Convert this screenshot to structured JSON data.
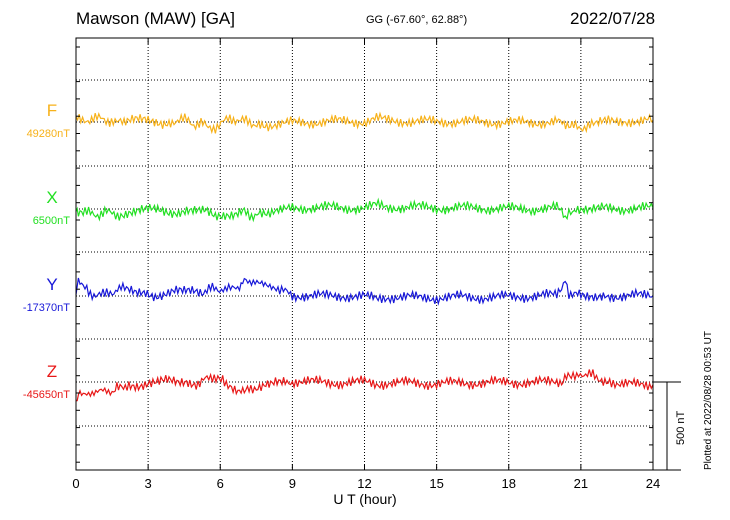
{
  "header": {
    "station": "Mawson (MAW)  [GA]",
    "coords": "GG (-67.60°,  62.88°)",
    "date": "2022/07/28"
  },
  "footer": {
    "plotted": "Plotted at 2022/08/28 00:53 UT"
  },
  "chart_data": {
    "type": "line",
    "title": "Mawson (MAW)  [GA]",
    "xlabel": "U T (hour)",
    "xlim": [
      0,
      24
    ],
    "xticks": [
      0,
      3,
      6,
      9,
      12,
      15,
      18,
      21,
      24
    ],
    "grid": true,
    "scale_bar": {
      "label": "500 nT",
      "value": 500,
      "unit": "nT"
    },
    "colors": {
      "F": "#f7b21b",
      "X": "#22e022",
      "Y": "#1818d8",
      "Z": "#e81818"
    },
    "series": [
      {
        "name": "F",
        "baseline": "49280nT",
        "x": [
          0,
          0.2,
          0.5,
          0.8,
          1.1,
          1.4,
          1.7,
          2.0,
          2.4,
          2.8,
          3.2,
          3.6,
          4.0,
          4.3,
          4.6,
          4.9,
          5.2,
          5.5,
          5.8,
          6.1,
          6.4,
          6.7,
          7.0,
          7.3,
          7.6,
          8.0,
          8.5,
          9.0,
          10.0,
          11.0,
          12.0,
          12.5,
          13.0,
          14.0,
          15.0,
          16.0,
          17.0,
          18.0,
          19.0,
          20.0,
          20.3,
          20.5,
          20.7,
          21.0,
          21.3,
          21.6,
          22.0,
          22.5,
          23.0,
          24.0
        ],
        "values": [
          30,
          10,
          15,
          18,
          20,
          8,
          -8,
          5,
          10,
          6,
          2,
          -2,
          5,
          15,
          10,
          -12,
          -5,
          -35,
          -28,
          -5,
          20,
          15,
          5,
          -10,
          -5,
          -15,
          -12,
          -5,
          0,
          5,
          2,
          18,
          8,
          4,
          2,
          3,
          0,
          -2,
          -3,
          2,
          -15,
          -35,
          -25,
          -30,
          -22,
          -18,
          0,
          -2,
          8,
          10
        ]
      },
      {
        "name": "X",
        "baseline": "6500nT",
        "x": [
          0,
          0.1,
          0.3,
          0.6,
          0.9,
          1.2,
          1.5,
          1.8,
          2.2,
          2.6,
          3.0,
          3.4,
          3.8,
          4.2,
          4.6,
          5.0,
          5.4,
          5.8,
          6.2,
          6.6,
          7.0,
          7.3,
          7.6,
          8.0,
          8.5,
          9.0,
          10.0,
          11.0,
          12.0,
          12.5,
          13.0,
          14.0,
          15.0,
          16.0,
          17.0,
          18.0,
          19.0,
          20.0,
          20.2,
          20.35,
          20.5,
          20.8,
          21.2,
          21.6,
          22.0,
          23.0,
          24.0
        ],
        "values": [
          -15,
          -30,
          -20,
          -25,
          -30,
          -20,
          -25,
          -30,
          -15,
          -12,
          -8,
          -5,
          -12,
          -15,
          -10,
          -20,
          -15,
          -35,
          -25,
          -28,
          -15,
          -35,
          -30,
          -20,
          -15,
          5,
          10,
          8,
          5,
          20,
          10,
          12,
          5,
          8,
          5,
          2,
          0,
          5,
          -25,
          -60,
          -15,
          5,
          10,
          8,
          5,
          2,
          5
        ]
      },
      {
        "name": "Y",
        "baseline": "-17370nT",
        "x": [
          0,
          0.1,
          0.3,
          0.6,
          0.9,
          1.2,
          1.5,
          1.8,
          2.1,
          2.5,
          2.9,
          3.3,
          3.7,
          4.1,
          4.5,
          4.9,
          5.3,
          5.6,
          5.9,
          6.2,
          6.5,
          6.8,
          7.0,
          7.3,
          7.6,
          8.0,
          8.4,
          9.0,
          10.0,
          11.0,
          12.0,
          12.5,
          13.0,
          14.0,
          15.0,
          16.0,
          17.0,
          18.0,
          19.0,
          20.0,
          20.2,
          20.35,
          20.5,
          20.8,
          21.2,
          21.6,
          22.0,
          23.0,
          24.0
        ],
        "values": [
          40,
          80,
          50,
          10,
          15,
          5,
          20,
          50,
          30,
          10,
          20,
          5,
          15,
          25,
          20,
          30,
          25,
          40,
          35,
          45,
          35,
          50,
          100,
          80,
          70,
          55,
          40,
          5,
          0,
          2,
          -5,
          -15,
          -5,
          -8,
          -10,
          -5,
          -8,
          -5,
          0,
          5,
          30,
          95,
          20,
          15,
          10,
          5,
          0,
          3,
          0
        ]
      },
      {
        "name": "Z",
        "baseline": "-45650nT",
        "x": [
          0,
          0.1,
          0.3,
          0.6,
          0.9,
          1.2,
          1.5,
          1.7,
          1.9,
          2.2,
          2.6,
          3.0,
          3.4,
          3.8,
          4.2,
          4.6,
          5.0,
          5.3,
          5.6,
          5.9,
          6.1,
          6.4,
          6.8,
          7.2,
          7.5,
          7.9,
          8.3,
          8.7,
          9.0,
          10.0,
          11.0,
          12.0,
          12.5,
          13.0,
          14.0,
          15.0,
          16.0,
          17.0,
          18.0,
          19.0,
          19.5,
          20.0,
          20.2,
          20.4,
          20.6,
          20.9,
          21.2,
          21.5,
          21.8,
          22.2,
          23.0,
          24.0
        ],
        "values": [
          -120,
          -65,
          -75,
          -60,
          -55,
          -50,
          -55,
          -10,
          -20,
          -15,
          -15,
          -5,
          -5,
          5,
          0,
          10,
          -10,
          20,
          10,
          35,
          25,
          -25,
          -45,
          -25,
          -35,
          0,
          10,
          -5,
          5,
          0,
          -5,
          0,
          -10,
          -5,
          -5,
          -10,
          -5,
          -5,
          0,
          -5,
          0,
          5,
          -10,
          30,
          20,
          50,
          35,
          40,
          20,
          5,
          -15,
          -15
        ]
      }
    ]
  }
}
